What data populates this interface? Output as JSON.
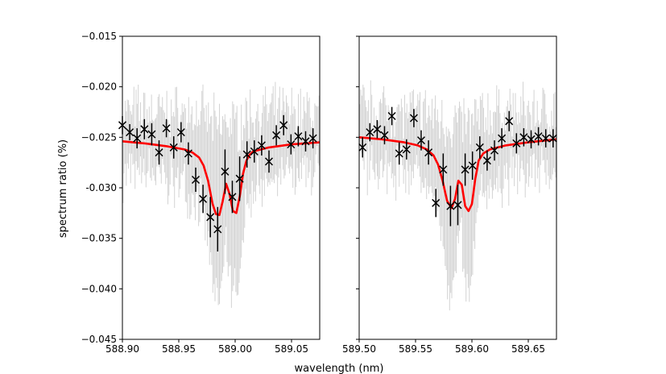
{
  "figure": {
    "ylabel": "spectrum ratio (%)",
    "xlabel": "wavelength (nm)"
  },
  "colors": {
    "raw_data": "#d3d3d3",
    "binned_points": "#000000",
    "model": "#ff0000"
  },
  "chart_data": [
    {
      "type": "scatter",
      "xlim": [
        588.9,
        589.075
      ],
      "ylim": [
        -0.045,
        -0.015
      ],
      "xticks": [
        588.9,
        588.95,
        589.0,
        589.05
      ],
      "xtick_labels": [
        "588.90",
        "588.95",
        "589.00",
        "589.05"
      ],
      "yticks": [
        -0.045,
        -0.04,
        -0.035,
        -0.03,
        -0.025,
        -0.02,
        -0.015
      ],
      "ytick_labels": [
        "−0.045",
        "−0.040",
        "−0.035",
        "-0.030",
        "−0.025",
        "−0.020",
        "−0.015"
      ],
      "grid": false,
      "series": [
        {
          "kind": "binned_points",
          "marker": "x",
          "x": [
            588.9,
            588.9065,
            588.913,
            588.9195,
            588.926,
            588.9325,
            588.939,
            588.9455,
            588.952,
            588.9585,
            588.965,
            588.9715,
            588.978,
            588.9845,
            588.991,
            588.9975,
            589.004,
            589.0105,
            589.017,
            589.0235,
            589.03,
            589.0365,
            589.043,
            589.0495,
            589.056,
            589.0625,
            589.069
          ],
          "y": [
            -0.0238,
            -0.0245,
            -0.0251,
            -0.0242,
            -0.0247,
            -0.0265,
            -0.0241,
            -0.026,
            -0.0245,
            -0.0266,
            -0.0292,
            -0.0311,
            -0.0329,
            -0.0341,
            -0.0284,
            -0.0309,
            -0.0291,
            -0.0267,
            -0.0264,
            -0.0258,
            -0.0274,
            -0.0248,
            -0.0238,
            -0.0257,
            -0.0249,
            -0.0254,
            -0.0251
          ],
          "yerr": [
            0.0009,
            0.0008,
            0.001,
            0.001,
            0.0011,
            0.0012,
            0.0009,
            0.0011,
            0.001,
            0.0011,
            0.0012,
            0.0014,
            0.002,
            0.0022,
            0.0022,
            0.0016,
            0.0022,
            0.0013,
            0.0011,
            0.001,
            0.0011,
            0.001,
            0.001,
            0.001,
            0.001,
            0.001,
            0.001
          ]
        },
        {
          "kind": "model",
          "line": "line",
          "x": [
            588.9,
            588.92,
            588.94,
            588.955,
            588.962,
            588.968,
            588.972,
            588.976,
            588.98,
            588.983,
            588.986,
            588.989,
            588.992,
            588.995,
            588.998,
            589.001,
            589.004,
            589.007,
            589.01,
            589.013,
            589.016,
            589.03,
            589.05,
            589.075
          ],
          "y": [
            -0.0254,
            -0.0256,
            -0.0259,
            -0.0262,
            -0.0265,
            -0.027,
            -0.0278,
            -0.0293,
            -0.0316,
            -0.0326,
            -0.0327,
            -0.0313,
            -0.0296,
            -0.0306,
            -0.0323,
            -0.0325,
            -0.0309,
            -0.0286,
            -0.0273,
            -0.0267,
            -0.0264,
            -0.026,
            -0.0257,
            -0.0255
          ]
        }
      ]
    },
    {
      "type": "scatter",
      "xlim": [
        589.5,
        589.675
      ],
      "ylim": [
        -0.045,
        -0.015
      ],
      "xticks": [
        589.5,
        589.55,
        589.6,
        589.65
      ],
      "xtick_labels": [
        "589.50",
        "589.55",
        "589.60",
        "589.65"
      ],
      "yticks": [
        -0.045,
        -0.04,
        -0.035,
        -0.03,
        -0.025,
        -0.02,
        -0.015
      ],
      "grid": false,
      "series": [
        {
          "kind": "binned_points",
          "marker": "x",
          "x": [
            589.503,
            589.5095,
            589.516,
            589.5225,
            589.529,
            589.5355,
            589.542,
            589.5485,
            589.555,
            589.5615,
            589.568,
            589.5745,
            589.581,
            589.5875,
            589.594,
            589.6005,
            589.607,
            589.6135,
            589.62,
            589.6265,
            589.633,
            589.6395,
            589.646,
            589.6525,
            589.659,
            589.6655,
            589.672
          ],
          "y": [
            -0.026,
            -0.0245,
            -0.0242,
            -0.0248,
            -0.0229,
            -0.0266,
            -0.0262,
            -0.0231,
            -0.0253,
            -0.0265,
            -0.0315,
            -0.0282,
            -0.0318,
            -0.0317,
            -0.0282,
            -0.0278,
            -0.026,
            -0.0273,
            -0.0263,
            -0.0251,
            -0.0234,
            -0.0256,
            -0.025,
            -0.0252,
            -0.0249,
            -0.0251,
            -0.0251
          ],
          "yerr": [
            0.001,
            0.0009,
            0.0009,
            0.0009,
            0.0009,
            0.0011,
            0.001,
            0.0009,
            0.001,
            0.0012,
            0.0014,
            0.0016,
            0.002,
            0.002,
            0.0016,
            0.0014,
            0.0011,
            0.001,
            0.001,
            0.001,
            0.001,
            0.001,
            0.0009,
            0.0009,
            0.0009,
            0.0009,
            0.0009
          ]
        },
        {
          "kind": "model",
          "line": "line",
          "x": [
            589.5,
            589.52,
            589.54,
            589.552,
            589.56,
            589.566,
            589.57,
            589.574,
            589.578,
            589.582,
            589.585,
            589.588,
            589.591,
            589.594,
            589.597,
            589.6,
            589.603,
            589.606,
            589.61,
            589.616,
            589.63,
            589.65,
            589.675
          ],
          "y": [
            -0.025,
            -0.0252,
            -0.0255,
            -0.0258,
            -0.0262,
            -0.0268,
            -0.0277,
            -0.0293,
            -0.0313,
            -0.032,
            -0.0311,
            -0.0293,
            -0.0297,
            -0.0318,
            -0.0323,
            -0.0316,
            -0.0291,
            -0.0273,
            -0.0266,
            -0.0262,
            -0.0258,
            -0.0255,
            -0.0252
          ]
        }
      ]
    }
  ]
}
